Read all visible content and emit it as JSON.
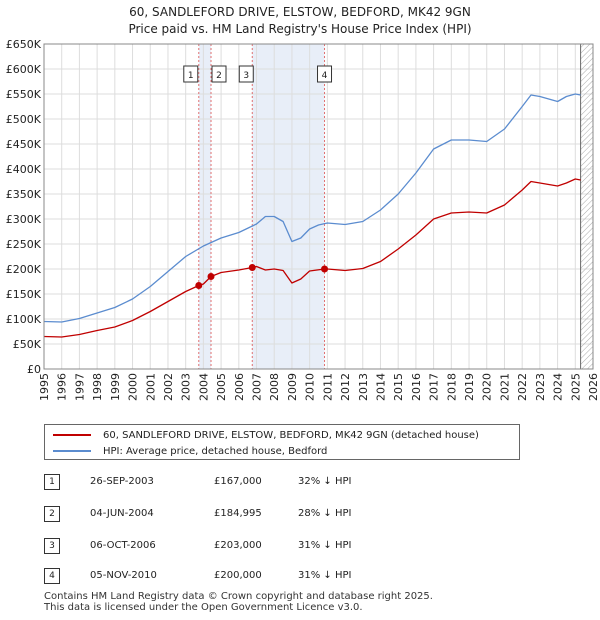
{
  "title": {
    "line1": "60, SANDLEFORD DRIVE, ELSTOW, BEDFORD, MK42 9GN",
    "line2": "Price paid vs. HM Land Registry's House Price Index (HPI)"
  },
  "chart_data": {
    "type": "line",
    "title": "60, SANDLEFORD DRIVE, ELSTOW, BEDFORD, MK42 9GN",
    "subtitle": "Price paid vs. HM Land Registry's House Price Index (HPI)",
    "xlim": [
      1995,
      2026
    ],
    "ylim": [
      0,
      650000
    ],
    "y_ticks": [
      0,
      50000,
      100000,
      150000,
      200000,
      250000,
      300000,
      350000,
      400000,
      450000,
      500000,
      550000,
      600000,
      650000
    ],
    "y_tick_labels": [
      "£0",
      "£50K",
      "£100K",
      "£150K",
      "£200K",
      "£250K",
      "£300K",
      "£350K",
      "£400K",
      "£450K",
      "£500K",
      "£550K",
      "£600K",
      "£650K"
    ],
    "x_ticks": [
      1995,
      1996,
      1997,
      1998,
      1999,
      2000,
      2001,
      2002,
      2003,
      2004,
      2005,
      2006,
      2007,
      2008,
      2009,
      2010,
      2011,
      2012,
      2013,
      2014,
      2015,
      2016,
      2017,
      2018,
      2019,
      2020,
      2021,
      2022,
      2023,
      2024,
      2025,
      2026
    ],
    "x_tick_labels": [
      "1995",
      "1996",
      "1997",
      "1998",
      "1999",
      "2000",
      "2001",
      "2002",
      "2003",
      "2004",
      "2005",
      "2006",
      "2007",
      "2008",
      "2009",
      "2010",
      "2011",
      "2012",
      "2013",
      "2014",
      "2015",
      "2016",
      "2017",
      "2018",
      "2019",
      "2020",
      "2021",
      "2022",
      "2023",
      "2024",
      "2025",
      "2026"
    ],
    "grid": true,
    "colors": {
      "hpi": "#5b8ccf",
      "price": "#c00000",
      "shade": "#e8eef8",
      "marker_line": "#e07070",
      "hatch": "#999999"
    },
    "series": [
      {
        "name": "60, SANDLEFORD DRIVE, ELSTOW, BEDFORD, MK42 9GN (detached house)",
        "x": [
          1995.0,
          1996.0,
          1997.0,
          1998.0,
          1999.0,
          2000.0,
          2001.0,
          2002.0,
          2003.0,
          2003.74,
          2004.0,
          2004.43,
          2005.0,
          2006.0,
          2006.76,
          2007.0,
          2007.5,
          2008.0,
          2008.5,
          2009.0,
          2009.5,
          2010.0,
          2010.84,
          2011.0,
          2012.0,
          2013.0,
          2014.0,
          2015.0,
          2016.0,
          2017.0,
          2018.0,
          2019.0,
          2020.0,
          2021.0,
          2022.0,
          2022.5,
          2023.0,
          2024.0,
          2024.5,
          2025.0,
          2025.3
        ],
        "values": [
          65000,
          64000,
          69000,
          77000,
          84000,
          97000,
          115000,
          135000,
          155000,
          167000,
          170000,
          184995,
          193000,
          198000,
          203000,
          205000,
          198000,
          200000,
          197000,
          172000,
          180000,
          196000,
          200000,
          200000,
          197000,
          201000,
          215000,
          240000,
          268000,
          300000,
          312000,
          314000,
          312000,
          328000,
          358000,
          375000,
          372000,
          366000,
          372000,
          380000,
          378000
        ]
      },
      {
        "name": "HPI: Average price, detached house, Bedford",
        "x": [
          1995.0,
          1996.0,
          1997.0,
          1998.0,
          1999.0,
          2000.0,
          2001.0,
          2002.0,
          2003.0,
          2004.0,
          2005.0,
          2006.0,
          2007.0,
          2007.5,
          2008.0,
          2008.5,
          2009.0,
          2009.5,
          2010.0,
          2010.5,
          2011.0,
          2012.0,
          2013.0,
          2014.0,
          2015.0,
          2016.0,
          2017.0,
          2018.0,
          2019.0,
          2020.0,
          2021.0,
          2022.0,
          2022.5,
          2023.0,
          2024.0,
          2024.5,
          2025.0,
          2025.3
        ],
        "values": [
          95000,
          94000,
          101000,
          112000,
          123000,
          140000,
          165000,
          195000,
          225000,
          246000,
          262000,
          273000,
          290000,
          305000,
          305000,
          295000,
          255000,
          262000,
          280000,
          288000,
          292000,
          289000,
          295000,
          318000,
          350000,
          392000,
          440000,
          458000,
          458000,
          455000,
          480000,
          525000,
          548000,
          545000,
          535000,
          545000,
          550000,
          548000
        ]
      }
    ],
    "sale_markers": [
      {
        "label": "1",
        "x": 2003.74,
        "y": 167000
      },
      {
        "label": "2",
        "x": 2004.43,
        "y": 184995
      },
      {
        "label": "3",
        "x": 2006.76,
        "y": 203000
      },
      {
        "label": "4",
        "x": 2010.84,
        "y": 200000
      }
    ],
    "shaded_ranges": [
      [
        2003.74,
        2004.43
      ],
      [
        2006.76,
        2010.84
      ]
    ],
    "hatched_from": 2025.3
  },
  "legend": {
    "price_label": "60, SANDLEFORD DRIVE, ELSTOW, BEDFORD, MK42 9GN (detached house)",
    "hpi_label": "HPI: Average price, detached house, Bedford"
  },
  "sales": [
    {
      "num": "1",
      "date": "26-SEP-2003",
      "price": "£167,000",
      "hpi": "32% ↓ HPI"
    },
    {
      "num": "2",
      "date": "04-JUN-2004",
      "price": "£184,995",
      "hpi": "28% ↓ HPI"
    },
    {
      "num": "3",
      "date": "06-OCT-2006",
      "price": "£203,000",
      "hpi": "31% ↓ HPI"
    },
    {
      "num": "4",
      "date": "05-NOV-2010",
      "price": "£200,000",
      "hpi": "31% ↓ HPI"
    }
  ],
  "footer": {
    "line1": "Contains HM Land Registry data © Crown copyright and database right 2025.",
    "line2": "This data is licensed under the Open Government Licence v3.0."
  }
}
